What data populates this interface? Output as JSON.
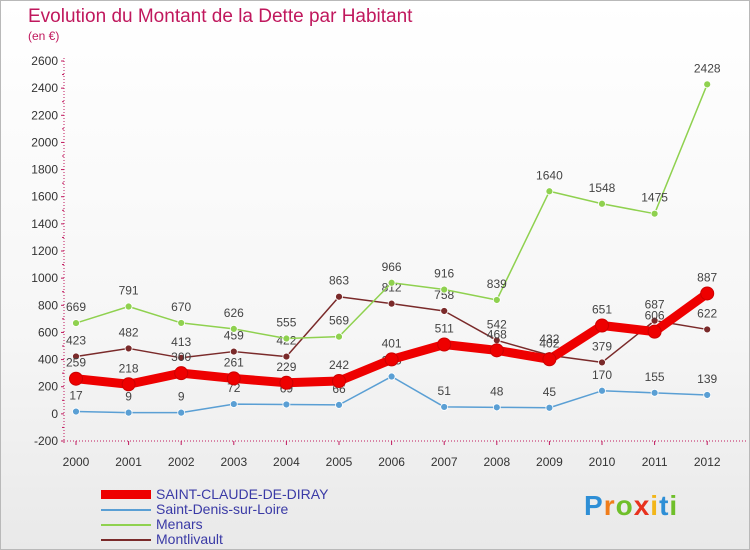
{
  "header": {
    "title": "Evolution du Montant de la Dette par Habitant",
    "subtitle": "(en €)"
  },
  "colors": {
    "title": "#c0185d",
    "legend_text": "#3a3aa6",
    "axis": "#c0185d"
  },
  "logo": {
    "text": "Proxiti",
    "letters": [
      "P",
      "r",
      "o",
      "x",
      "i",
      "t",
      "i"
    ],
    "colors": [
      "#2e8fd6",
      "#f07d1a",
      "#6fbf2a",
      "#e8321e",
      "#f2b619",
      "#2e8fd6",
      "#6fbf2a"
    ]
  },
  "chart_data": {
    "type": "line",
    "title": "Evolution du Montant de la Dette par Habitant",
    "subtitle": "(en €)",
    "xlabel": "",
    "ylabel": "",
    "categories": [
      "2000",
      "2001",
      "2002",
      "2003",
      "2004",
      "2005",
      "2006",
      "2007",
      "2008",
      "2009",
      "2010",
      "2011",
      "2012"
    ],
    "ylim": [
      -200,
      2600
    ],
    "yticks": [
      -200,
      0,
      200,
      400,
      600,
      800,
      1000,
      1200,
      1400,
      1600,
      1800,
      2000,
      2200,
      2400,
      2600
    ],
    "grid": false,
    "legend_position": "bottom",
    "series": [
      {
        "name": "Montlivault",
        "color": "#7a2a2a",
        "emphasis": false,
        "values": [
          423,
          482,
          413,
          459,
          422,
          863,
          812,
          758,
          542,
          432,
          379,
          687,
          622
        ]
      },
      {
        "name": "Menars",
        "color": "#8fd14f",
        "emphasis": false,
        "values": [
          669,
          791,
          670,
          626,
          555,
          569,
          966,
          916,
          839,
          1640,
          1548,
          1475,
          2428
        ]
      },
      {
        "name": "Saint-Denis-sur-Loire",
        "color": "#5a9fd4",
        "emphasis": false,
        "values": [
          17,
          9,
          9,
          72,
          69,
          66,
          275,
          51,
          48,
          45,
          170,
          155,
          139
        ]
      },
      {
        "name": "SAINT-CLAUDE-DE-DIRAY",
        "color": "#ee0000",
        "emphasis": true,
        "values": [
          259,
          218,
          300,
          261,
          229,
          242,
          401,
          511,
          468,
          402,
          651,
          606,
          887
        ]
      }
    ]
  }
}
